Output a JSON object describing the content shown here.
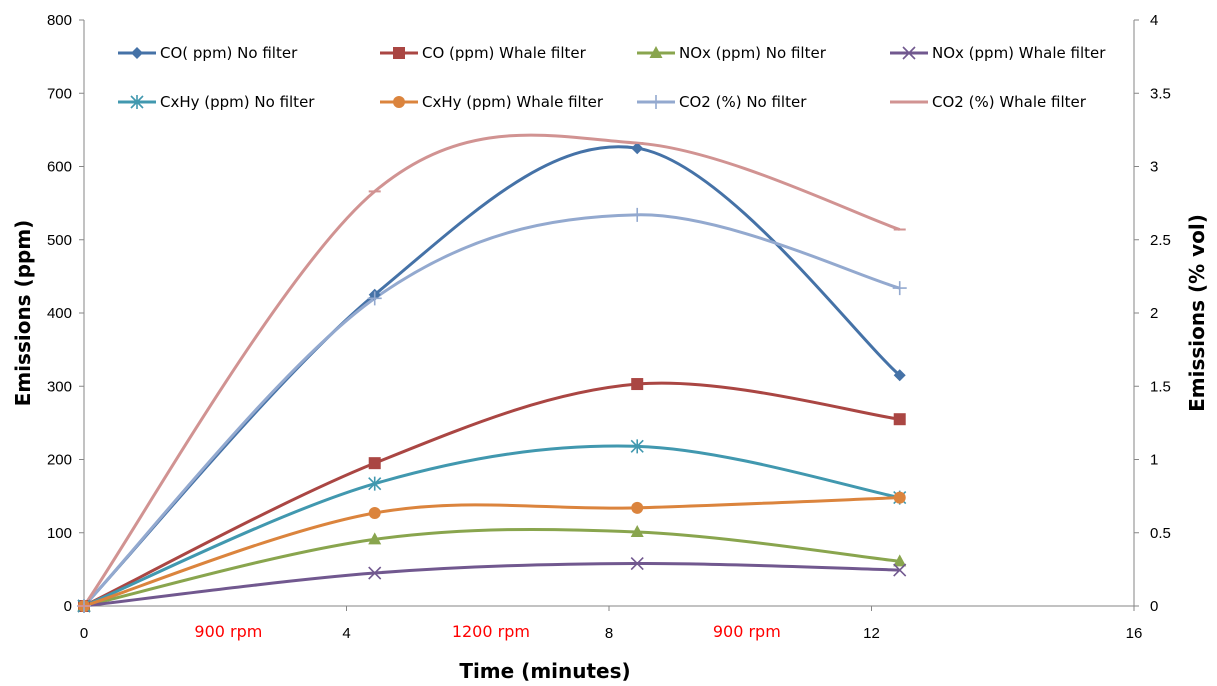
{
  "chart_data": {
    "type": "line",
    "xlabel": "Time (minutes)",
    "ylabel": "Emissions (ppm)",
    "y2label": "Emissions (% vol)",
    "xlim": [
      0,
      16
    ],
    "ylim": [
      0,
      800
    ],
    "y2lim": [
      0,
      4
    ],
    "xticks": [
      "0",
      "4",
      "8",
      "12",
      "16"
    ],
    "yticks": [
      "0",
      "100",
      "200",
      "300",
      "400",
      "500",
      "600",
      "700",
      "800"
    ],
    "y2ticks": [
      "0",
      "0.5",
      "1",
      "1.5",
      "2",
      "2.5",
      "3",
      "3.5",
      "4"
    ],
    "grid": false,
    "legend_position": "top",
    "annotations": [
      {
        "text": "900 rpm",
        "x": 2.2,
        "color": "#ff0000"
      },
      {
        "text": "1200 rpm",
        "x": 6.2,
        "color": "#ff0000"
      },
      {
        "text": "900 rpm",
        "x": 10.1,
        "color": "#ff0000"
      }
    ],
    "series": [
      {
        "name": "CO( ppm) No filter",
        "axis": "left",
        "color": "#4572a7",
        "marker": "diamond",
        "x": [
          0,
          4,
          8,
          12
        ],
        "y": [
          0,
          425,
          625,
          315
        ]
      },
      {
        "name": "CO (ppm) Whale filter",
        "axis": "left",
        "color": "#aa4643",
        "marker": "square",
        "x": [
          0,
          4,
          8,
          12
        ],
        "y": [
          0,
          195,
          303,
          255
        ]
      },
      {
        "name": "NOx (ppm) No filter",
        "axis": "left",
        "color": "#89a54e",
        "marker": "triangle",
        "x": [
          0,
          4,
          8,
          12
        ],
        "y": [
          0,
          91,
          101,
          61
        ]
      },
      {
        "name": "NOx (ppm) Whale filter",
        "axis": "left",
        "color": "#71588f",
        "marker": "x",
        "x": [
          0,
          4,
          8,
          12
        ],
        "y": [
          0,
          45,
          58,
          49
        ]
      },
      {
        "name": "CxHy (ppm) No filter",
        "axis": "left",
        "color": "#4198af",
        "marker": "star",
        "x": [
          0,
          4,
          8,
          12
        ],
        "y": [
          0,
          167,
          218,
          148
        ]
      },
      {
        "name": "CxHy (ppm) Whale filter",
        "axis": "left",
        "color": "#db843d",
        "marker": "circle",
        "x": [
          0,
          4,
          8,
          12
        ],
        "y": [
          0,
          127,
          134,
          148
        ]
      },
      {
        "name": "CO2 (%) No filter",
        "axis": "right",
        "color": "#93a9cf",
        "marker": "plus",
        "x": [
          0,
          4,
          8,
          12
        ],
        "y": [
          0,
          2.1,
          2.67,
          2.17
        ]
      },
      {
        "name": "CO2 (%) Whale filter",
        "axis": "right",
        "color": "#d19392",
        "marker": "dash",
        "x": [
          0,
          4,
          8,
          12
        ],
        "y": [
          0,
          2.83,
          3.16,
          2.57
        ]
      }
    ]
  }
}
